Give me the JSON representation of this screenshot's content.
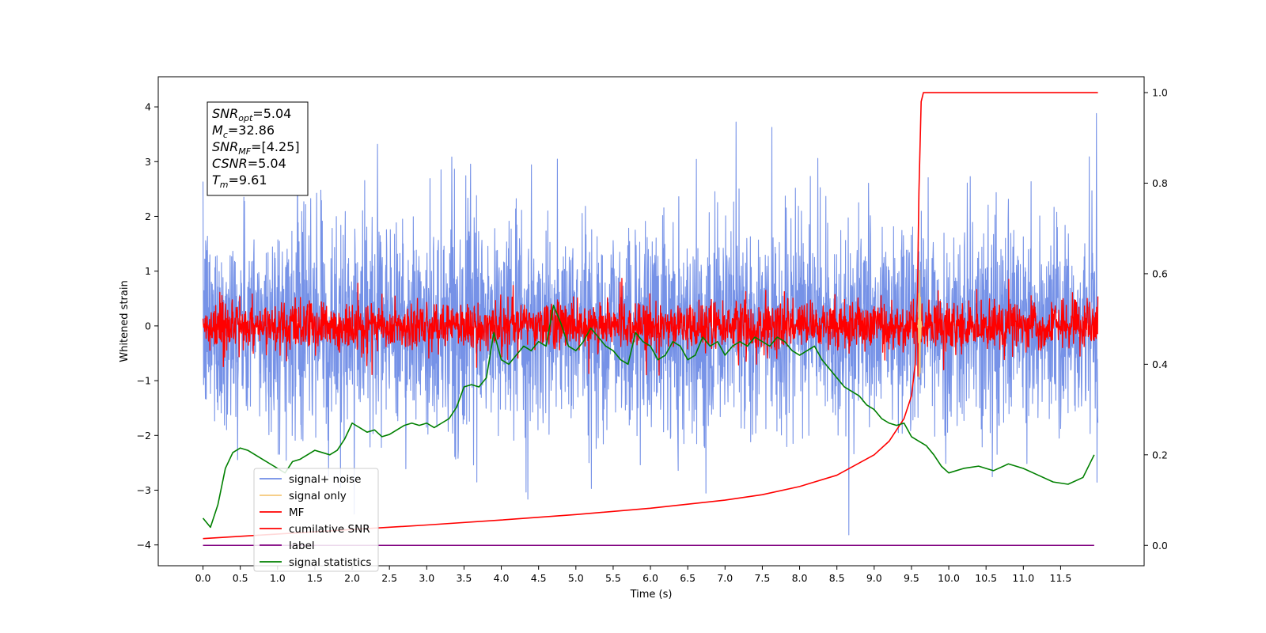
{
  "chart_data": {
    "type": "line",
    "title": "",
    "xlabel": "Time (s)",
    "ylabel": "Whitened strain",
    "xlim": [
      -0.6,
      12.62
    ],
    "ylim": [
      -4.38,
      4.55
    ],
    "y2lim": [
      -0.045,
      1.035
    ],
    "x_ticks": [
      "0.0",
      "0.5",
      "1.0",
      "1.5",
      "2.0",
      "2.5",
      "3.0",
      "3.5",
      "4.0",
      "4.5",
      "5.0",
      "5.5",
      "6.0",
      "6.5",
      "7.0",
      "7.5",
      "8.0",
      "8.5",
      "9.0",
      "9.5",
      "10.0",
      "10.5",
      "11.0",
      "11.5"
    ],
    "y_ticks": [
      "4",
      "3",
      "2",
      "1",
      "0",
      "−1",
      "−2",
      "−3",
      "−4"
    ],
    "y2_ticks": [
      "1.0",
      "0.8",
      "0.6",
      "0.4",
      "0.2",
      "0.0"
    ],
    "grid": false,
    "legend_position": "lower-left",
    "colors": {
      "signal_noise": "#6f8ce6",
      "signal_only": "#f4c87a",
      "mf": "#ff0000",
      "cumulative_snr": "#ff0000",
      "label": "#800080",
      "signal_statistics": "#008000"
    },
    "annotation": {
      "lines": [
        {
          "base": "SNR",
          "sub": "opt",
          "value": "=5.04"
        },
        {
          "base": "M",
          "sub": "c",
          "value": "=32.86"
        },
        {
          "base": "SNR",
          "sub": "MF",
          "value": "=[4.25]"
        },
        {
          "base": "CSNR",
          "sub": "",
          "value": "=5.04"
        },
        {
          "base": "T",
          "sub": "m",
          "value": "=9.61"
        }
      ]
    },
    "series": [
      {
        "name": "signal+ noise",
        "axis": "left",
        "kind": "noise",
        "x_range": [
          0.0,
          12.0
        ],
        "std": 0.95,
        "spike_max": 4.0
      },
      {
        "name": "signal only",
        "axis": "left",
        "kind": "burst",
        "center": 9.61,
        "peak": 1.05
      },
      {
        "name": "MF",
        "axis": "left",
        "kind": "noise",
        "x_range": [
          0.0,
          12.0
        ],
        "std": 0.22,
        "spike_max": 0.95
      },
      {
        "name": "cumilative SNR",
        "axis": "right",
        "kind": "line",
        "x": [
          0.0,
          1.0,
          2.0,
          3.0,
          4.0,
          5.0,
          6.0,
          7.0,
          7.5,
          8.0,
          8.5,
          9.0,
          9.2,
          9.4,
          9.5,
          9.55,
          9.58,
          9.6,
          9.63,
          9.66,
          12.0
        ],
        "y": [
          0.015,
          0.025,
          0.035,
          0.045,
          0.056,
          0.068,
          0.082,
          0.1,
          0.112,
          0.13,
          0.155,
          0.2,
          0.23,
          0.28,
          0.33,
          0.4,
          0.55,
          0.78,
          0.98,
          1.0,
          1.0
        ]
      },
      {
        "name": "label",
        "axis": "right",
        "kind": "line",
        "x": [
          0.0,
          11.95
        ],
        "y": [
          0.0,
          0.0
        ]
      },
      {
        "name": "signal statistics",
        "axis": "right",
        "kind": "line",
        "x": [
          0.0,
          0.1,
          0.2,
          0.3,
          0.4,
          0.5,
          0.6,
          0.7,
          0.8,
          0.9,
          1.0,
          1.1,
          1.2,
          1.3,
          1.4,
          1.5,
          1.6,
          1.7,
          1.8,
          1.9,
          2.0,
          2.1,
          2.2,
          2.3,
          2.4,
          2.5,
          2.6,
          2.7,
          2.8,
          2.9,
          3.0,
          3.1,
          3.2,
          3.3,
          3.4,
          3.5,
          3.6,
          3.7,
          3.8,
          3.9,
          4.0,
          4.1,
          4.2,
          4.3,
          4.4,
          4.5,
          4.6,
          4.7,
          4.8,
          4.9,
          5.0,
          5.1,
          5.2,
          5.3,
          5.4,
          5.5,
          5.6,
          5.7,
          5.8,
          5.9,
          6.0,
          6.1,
          6.2,
          6.3,
          6.4,
          6.5,
          6.6,
          6.7,
          6.8,
          6.9,
          7.0,
          7.1,
          7.2,
          7.3,
          7.4,
          7.5,
          7.6,
          7.7,
          7.8,
          7.9,
          8.0,
          8.1,
          8.2,
          8.3,
          8.4,
          8.5,
          8.6,
          8.7,
          8.8,
          8.9,
          9.0,
          9.1,
          9.2,
          9.3,
          9.4,
          9.5,
          9.6,
          9.7,
          9.8,
          9.9,
          10.0,
          10.2,
          10.4,
          10.6,
          10.8,
          11.0,
          11.2,
          11.4,
          11.6,
          11.8,
          11.95
        ],
        "y": [
          0.06,
          0.04,
          0.09,
          0.17,
          0.205,
          0.215,
          0.21,
          0.2,
          0.19,
          0.18,
          0.17,
          0.16,
          0.185,
          0.19,
          0.2,
          0.21,
          0.205,
          0.2,
          0.21,
          0.235,
          0.27,
          0.26,
          0.25,
          0.255,
          0.24,
          0.245,
          0.255,
          0.265,
          0.27,
          0.265,
          0.27,
          0.26,
          0.27,
          0.28,
          0.305,
          0.35,
          0.355,
          0.35,
          0.37,
          0.47,
          0.41,
          0.4,
          0.42,
          0.44,
          0.43,
          0.45,
          0.44,
          0.53,
          0.49,
          0.44,
          0.43,
          0.45,
          0.48,
          0.46,
          0.44,
          0.43,
          0.41,
          0.4,
          0.47,
          0.45,
          0.44,
          0.41,
          0.42,
          0.45,
          0.44,
          0.41,
          0.42,
          0.46,
          0.44,
          0.45,
          0.42,
          0.44,
          0.45,
          0.44,
          0.46,
          0.45,
          0.44,
          0.46,
          0.45,
          0.43,
          0.42,
          0.43,
          0.44,
          0.41,
          0.39,
          0.37,
          0.35,
          0.34,
          0.33,
          0.31,
          0.3,
          0.28,
          0.27,
          0.265,
          0.27,
          0.24,
          0.23,
          0.22,
          0.2,
          0.175,
          0.16,
          0.17,
          0.175,
          0.165,
          0.18,
          0.17,
          0.155,
          0.14,
          0.135,
          0.15,
          0.2
        ]
      }
    ]
  }
}
